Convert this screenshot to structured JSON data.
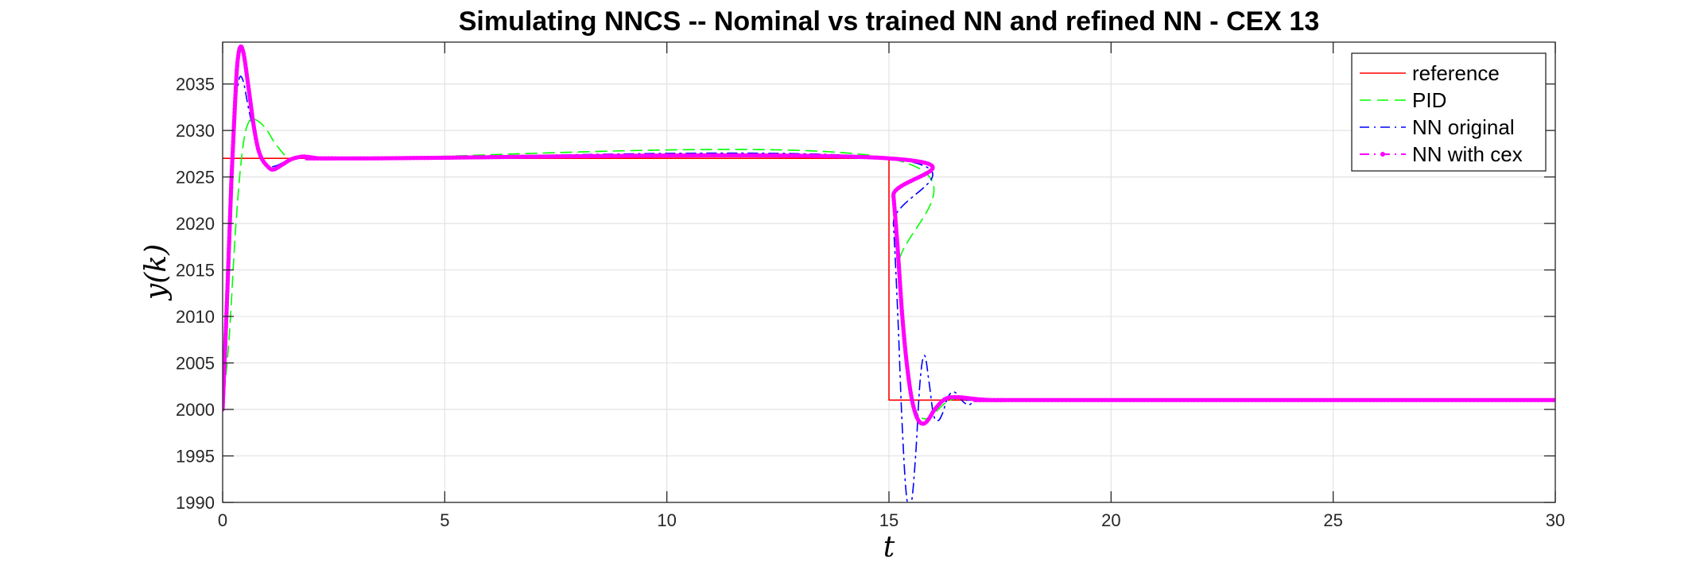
{
  "chart_data": {
    "type": "line",
    "title": "Simulating NNCS -- Nominal vs trained NN and refined NN - CEX 13",
    "xlabel": "t",
    "ylabel": "y(k)",
    "xlim": [
      0,
      30
    ],
    "ylim": [
      1990,
      2039.5
    ],
    "xticks": [
      0,
      5,
      10,
      15,
      20,
      25,
      30
    ],
    "yticks": [
      1990,
      1995,
      2000,
      2005,
      2010,
      2015,
      2020,
      2025,
      2030,
      2035
    ],
    "grid": true,
    "legend_position": "top-right",
    "series": [
      {
        "name": "reference",
        "color": "#ff0000",
        "style": "solid",
        "x": [
          0,
          15,
          15,
          30
        ],
        "y": [
          2027,
          2027,
          2001,
          2001
        ]
      },
      {
        "name": "PID",
        "color": "#00ff00",
        "style": "dashed",
        "x": [
          0,
          0.15,
          0.3,
          0.45,
          0.6,
          0.8,
          1.0,
          1.2,
          1.5,
          1.8,
          2.2,
          2.6,
          3.0,
          15.0,
          15.2,
          15.4,
          15.6,
          15.8,
          16.0,
          16.3,
          16.6,
          17.0,
          17.5,
          18.0,
          30
        ],
        "y": [
          2000,
          2008,
          2020,
          2028,
          2031,
          2031,
          2030,
          2028.5,
          2027,
          2027.3,
          2027.1,
          2027,
          2027,
          2027,
          2015,
          2005,
          2000,
          1999,
          1999.5,
          2000.8,
          2001.2,
          2001.1,
          2001,
          2001,
          2001
        ]
      },
      {
        "name": "NN original",
        "color": "#0000ff",
        "style": "dashdot",
        "x": [
          0,
          0.15,
          0.25,
          0.35,
          0.45,
          0.6,
          0.8,
          1.0,
          1.2,
          1.5,
          1.8,
          2.2,
          2.6,
          3.0,
          15.0,
          15.1,
          15.2,
          15.3,
          15.4,
          15.5,
          15.6,
          15.7,
          15.8,
          15.9,
          16.0,
          16.1,
          16.2,
          16.3,
          16.4,
          16.5,
          16.6,
          16.7,
          16.8,
          16.9,
          17.0,
          17.2,
          17.4,
          17.8,
          30
        ],
        "y": [
          2000,
          2018,
          2030,
          2035,
          2035.5,
          2032,
          2028,
          2026.3,
          2026.2,
          2026.9,
          2027.1,
          2027,
          2027,
          2027,
          2027,
          2020,
          2010,
          1998,
          1990.5,
          1989.8,
          1995,
          2003,
          2005.8,
          2003,
          1999.5,
          1998.8,
          1999.5,
          2001,
          2001.8,
          2001.8,
          2001.2,
          2000.7,
          2000.5,
          2000.8,
          2001.1,
          2001,
          2001,
          2001,
          2001
        ]
      },
      {
        "name": "NN with cex",
        "color": "#ff00ff",
        "style": "dotmarker",
        "x": [
          0,
          0.1,
          0.2,
          0.3,
          0.35,
          0.4,
          0.45,
          0.5,
          0.6,
          0.7,
          0.8,
          0.9,
          1.0,
          1.1,
          1.2,
          1.3,
          1.4,
          1.5,
          1.6,
          1.8,
          2.0,
          2.2,
          2.5,
          3.0,
          15.0,
          15.1,
          15.2,
          15.3,
          15.4,
          15.5,
          15.6,
          15.7,
          15.8,
          15.9,
          16.0,
          16.1,
          16.2,
          16.3,
          16.4,
          16.6,
          16.8,
          17.0,
          17.3,
          17.6,
          18.0,
          30
        ],
        "y": [
          2000,
          2012,
          2025,
          2035,
          2038,
          2039,
          2038.7,
          2037.5,
          2034,
          2030.5,
          2028,
          2026.8,
          2026.2,
          2025.8,
          2025.9,
          2026.2,
          2026.5,
          2026.8,
          2027,
          2027.2,
          2027.1,
          2027,
          2027,
          2027,
          2027,
          2023,
          2017,
          2010,
          2005,
          2001.5,
          1999.5,
          1998.6,
          1998.5,
          1999,
          1999.8,
          2000.4,
          2000.9,
          2001.2,
          2001.3,
          2001.3,
          2001.2,
          2001.1,
          2001,
          2001,
          2001,
          2001
        ]
      }
    ]
  }
}
